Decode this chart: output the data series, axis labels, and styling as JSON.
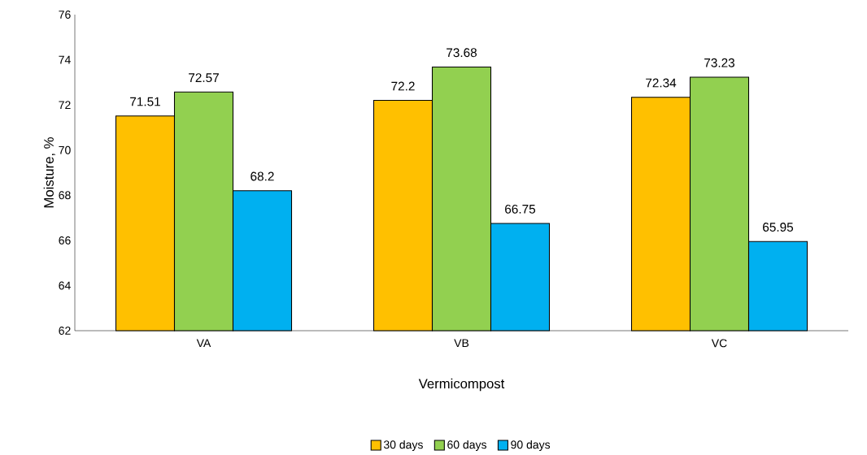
{
  "chart_data": {
    "type": "bar",
    "xlabel": "Vermicompost",
    "ylabel": "Moisture, %",
    "categories": [
      "VA",
      "VB",
      "VC"
    ],
    "series": [
      {
        "name": "30 days",
        "color": "#ffc000",
        "values": [
          71.51,
          72.2,
          72.34
        ]
      },
      {
        "name": "60 days",
        "color": "#92d050",
        "values": [
          72.57,
          73.68,
          73.23
        ]
      },
      {
        "name": "90 days",
        "color": "#00b0f0",
        "values": [
          68.2,
          66.75,
          65.95
        ]
      }
    ],
    "ylim": [
      62,
      76
    ],
    "yticks": [
      62,
      64,
      66,
      68,
      70,
      72,
      74,
      76
    ],
    "data_labels": true,
    "legend": "bottom",
    "grid": false
  }
}
